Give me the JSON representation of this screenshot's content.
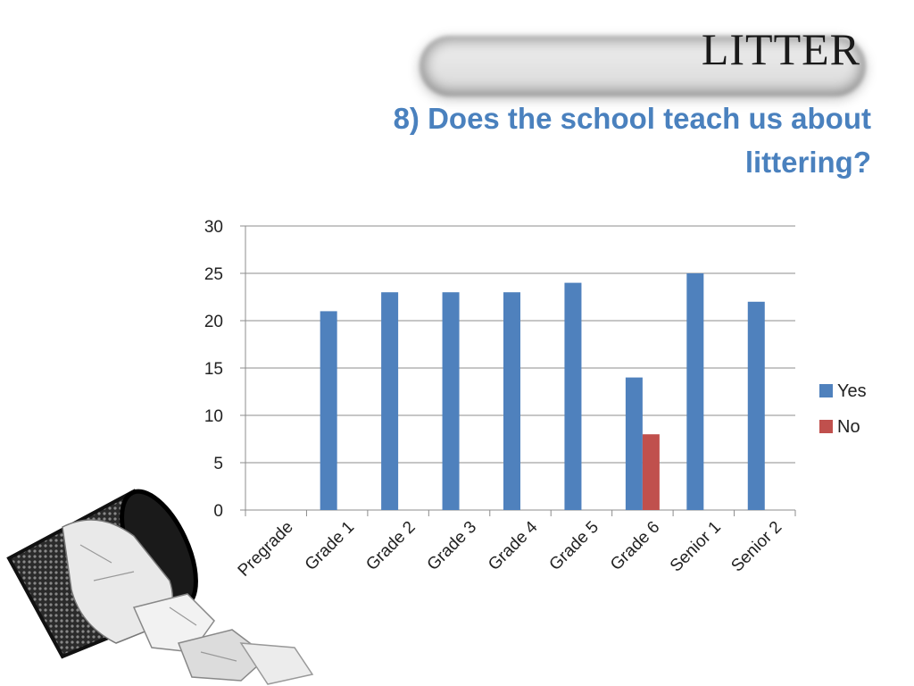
{
  "slide": {
    "title": "LITTER",
    "subtitle": "8) Does the school teach us about littering?"
  },
  "chart_data": {
    "type": "bar",
    "title": "",
    "xlabel": "",
    "ylabel": "",
    "categories": [
      "Pregrade",
      "Grade 1",
      "Grade 2",
      "Grade 3",
      "Grade 4",
      "Grade 5",
      "Grade 6",
      "Senior 1",
      "Senior 2"
    ],
    "series": [
      {
        "name": "Yes",
        "color": "#4f81bd",
        "values": [
          0,
          21,
          23,
          23,
          23,
          24,
          14,
          25,
          22
        ]
      },
      {
        "name": "No",
        "color": "#c0504d",
        "values": [
          0,
          0,
          0,
          0,
          0,
          0,
          8,
          0,
          0
        ]
      }
    ],
    "ylim": [
      0,
      30
    ],
    "yticks": [
      0,
      5,
      10,
      15,
      20,
      25,
      30
    ],
    "grid": true,
    "legend": "right"
  },
  "decor": {
    "image_icon": "wastebasket-with-paper-icon"
  }
}
